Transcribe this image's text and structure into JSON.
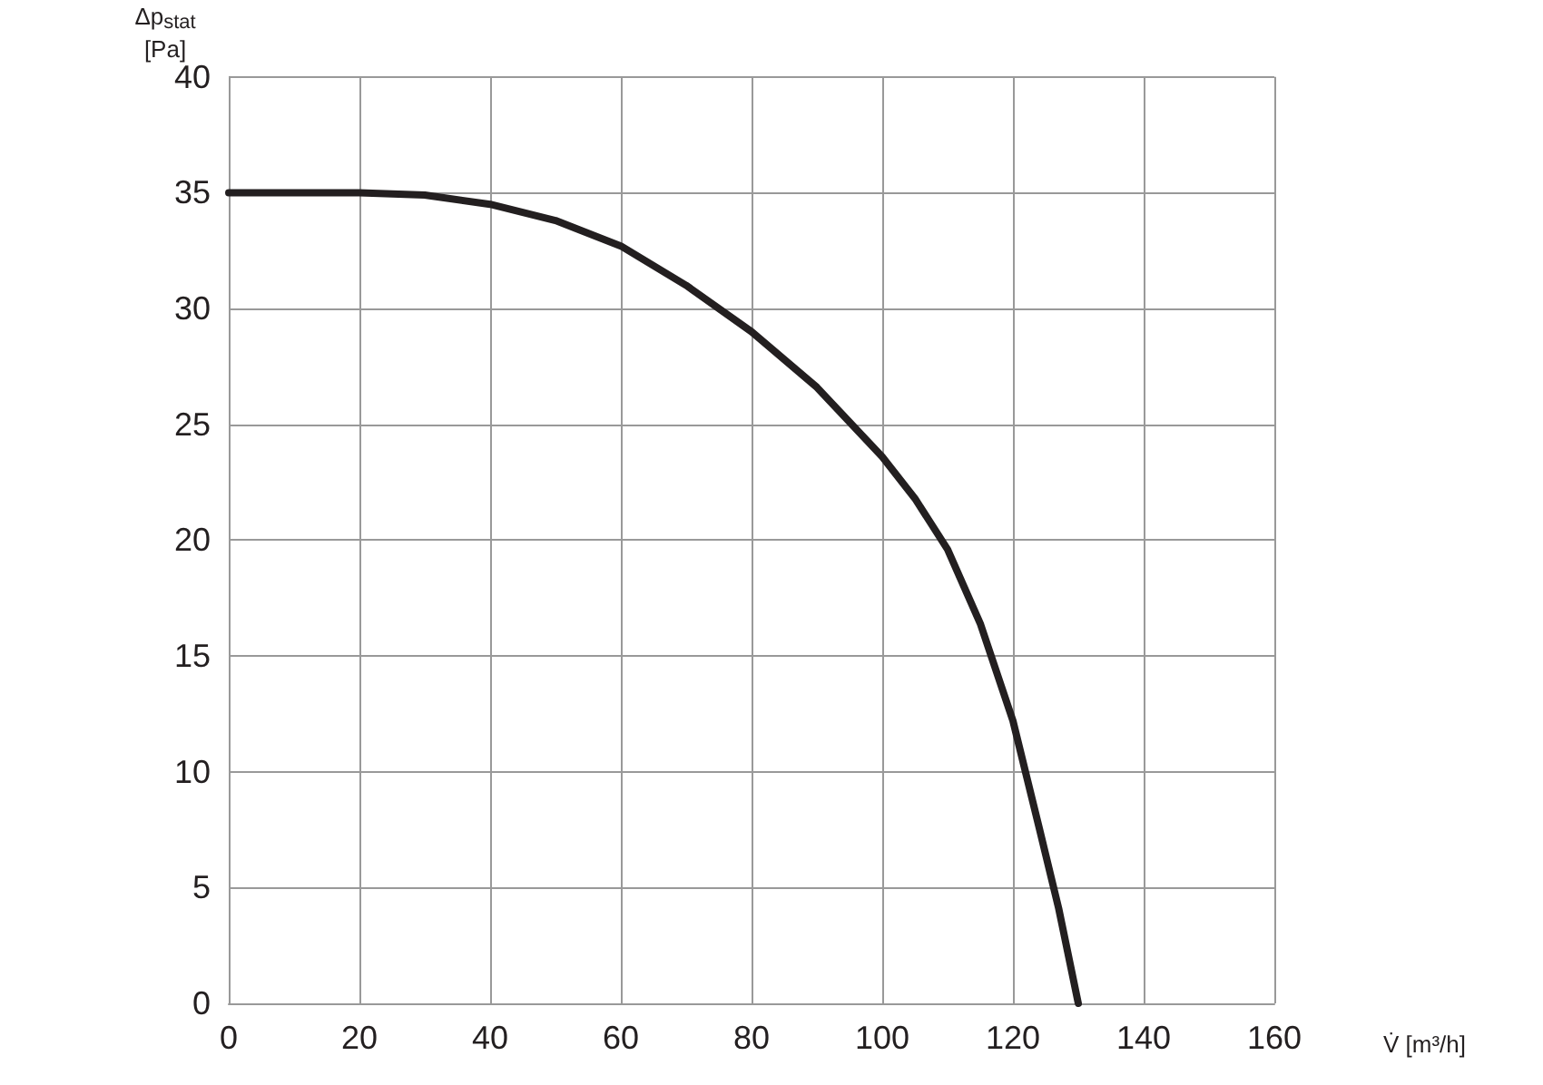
{
  "chart_data": {
    "type": "line",
    "xlabel": "V̇ [m³/h]",
    "ylabel": "Δp$_{stat}$\n[Pa]",
    "x": [
      0,
      10,
      20,
      30,
      40,
      50,
      60,
      70,
      80,
      90,
      100,
      105,
      110,
      115,
      120,
      124,
      127,
      130
    ],
    "series": [
      {
        "color": "#231f20",
        "values": [
          35,
          35,
          35,
          34.9,
          34.5,
          33.8,
          32.7,
          31,
          29,
          26.6,
          23.6,
          21.8,
          19.6,
          16.4,
          12.2,
          7.6,
          4.1,
          0
        ]
      }
    ],
    "xlim": [
      0,
      160
    ],
    "xticks": [
      0,
      20,
      40,
      60,
      80,
      100,
      120,
      140,
      160
    ],
    "ylim": [
      0,
      40
    ],
    "yticks": [
      0,
      5,
      10,
      15,
      20,
      25,
      30,
      35,
      40
    ],
    "grid": true,
    "marker": "none",
    "line_style": "solid"
  }
}
